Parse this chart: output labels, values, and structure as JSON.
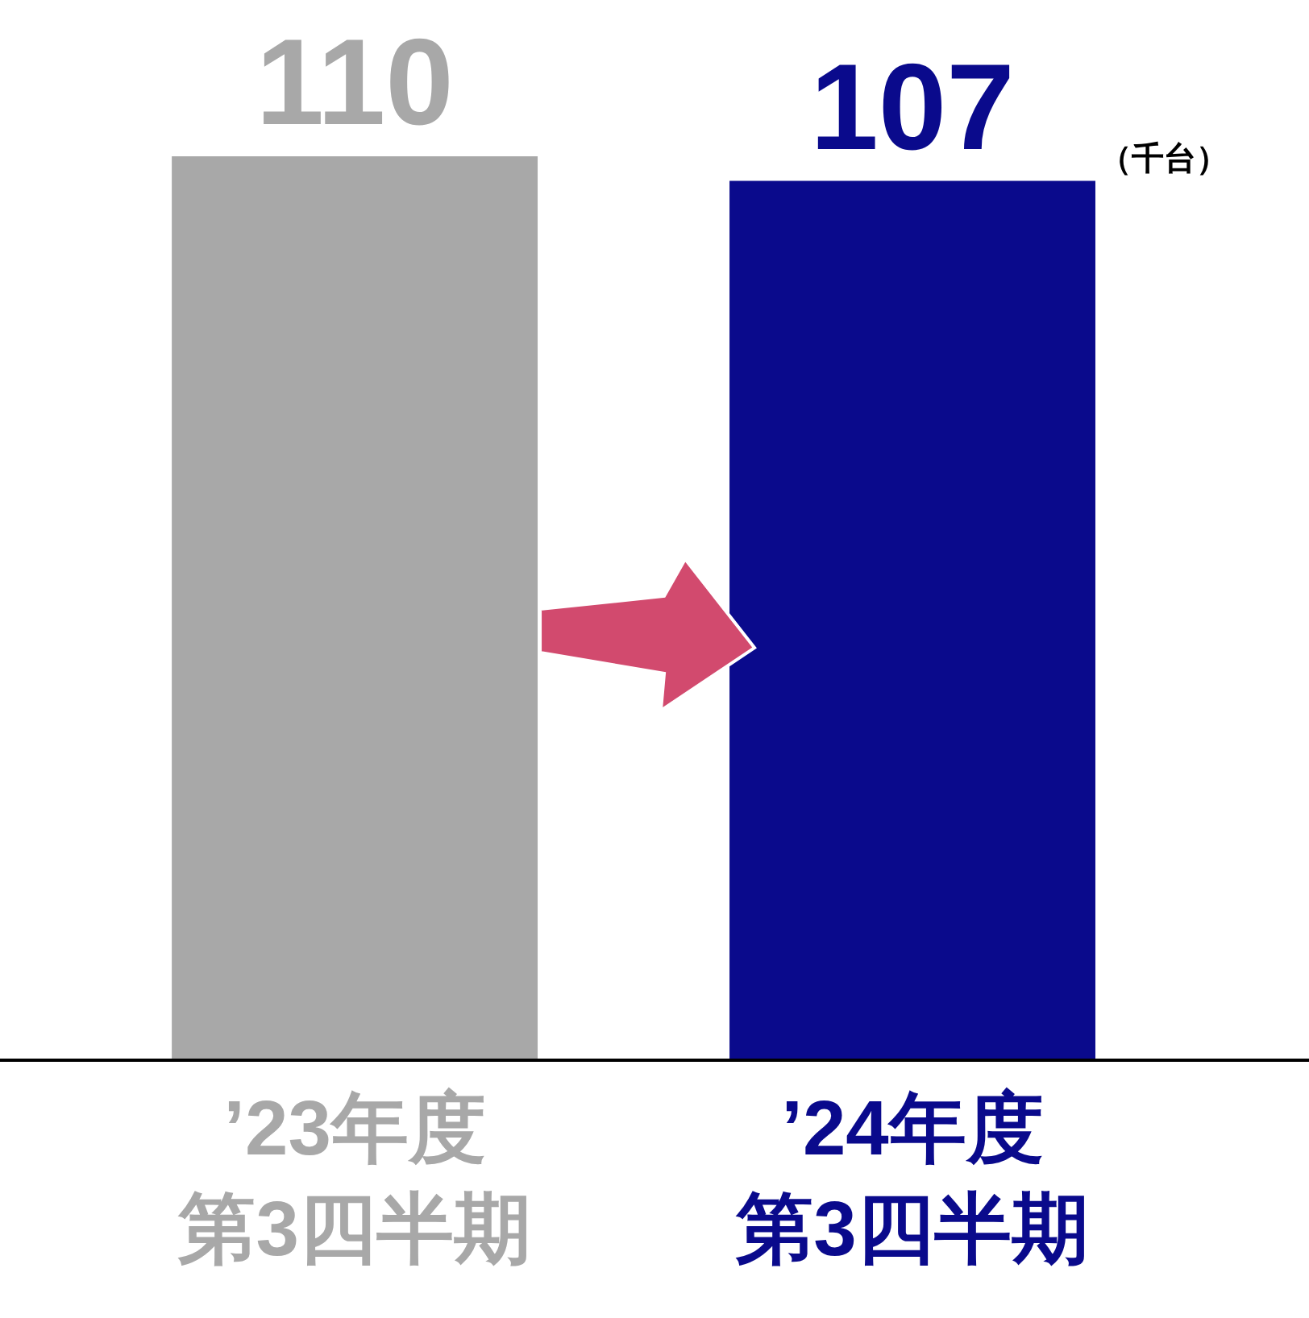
{
  "chart_data": {
    "type": "bar",
    "categories": [
      "’23年度第3四半期",
      "’24年度第3四半期"
    ],
    "values": [
      110,
      107
    ],
    "colors": [
      "#a8a8a8",
      "#0a0a8c"
    ],
    "data_labels": true,
    "annotations": [
      "（千台）"
    ],
    "legend": false
  }
}
